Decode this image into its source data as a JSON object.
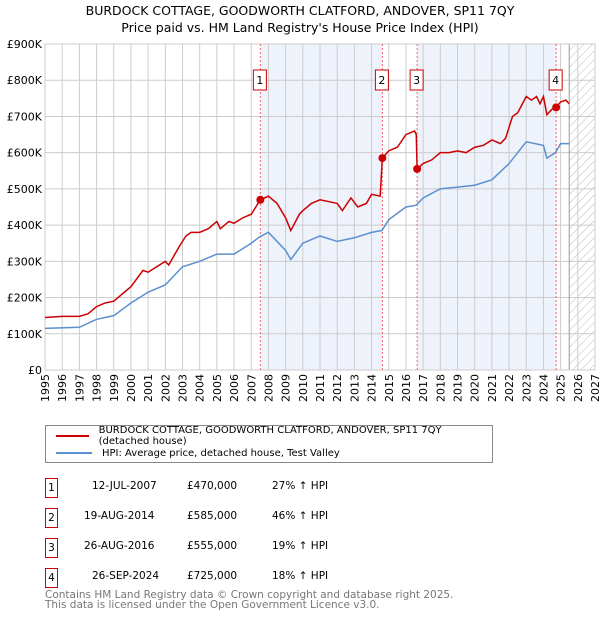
{
  "title": "BURDOCK COTTAGE, GOODWORTH CLATFORD, ANDOVER, SP11 7QY",
  "subtitle": "Price paid vs. HM Land Registry's House Price Index (HPI)",
  "chart_data": {
    "type": "line",
    "ylim": [
      0,
      900000
    ],
    "xlim": [
      1995,
      2027
    ],
    "yticks": [
      "£0",
      "£100K",
      "£200K",
      "£300K",
      "£400K",
      "£500K",
      "£600K",
      "£700K",
      "£800K",
      "£900K"
    ],
    "xticks": [
      "1995",
      "1996",
      "1997",
      "1998",
      "1999",
      "2000",
      "2001",
      "2002",
      "2003",
      "2004",
      "2005",
      "2006",
      "2007",
      "2008",
      "2009",
      "2010",
      "2011",
      "2012",
      "2013",
      "2014",
      "2015",
      "2016",
      "2017",
      "2018",
      "2019",
      "2020",
      "2021",
      "2022",
      "2023",
      "2024",
      "2025",
      "2026",
      "2027"
    ],
    "forecast_start": 2025.5,
    "series": [
      {
        "name": "BURDOCK COTTAGE, GOODWORTH CLATFORD, ANDOVER, SP11 7QY (detached house)",
        "color": "#cc0000",
        "x": [
          1995,
          1996,
          1997,
          1997.5,
          1998,
          1998.5,
          1999,
          2000,
          2000.7,
          2001,
          2001.5,
          2002,
          2002.2,
          2002.8,
          2003.2,
          2003.5,
          2004,
          2004.5,
          2005,
          2005.2,
          2005.7,
          2006,
          2006.5,
          2007,
          2007.53,
          2008,
          2008.5,
          2009,
          2009.3,
          2009.8,
          2010,
          2010.5,
          2011,
          2011.5,
          2012,
          2012.3,
          2012.8,
          2013.2,
          2013.7,
          2014,
          2014.5,
          2014.63,
          2015,
          2015.5,
          2016,
          2016.5,
          2016.6,
          2016.65,
          2017,
          2017.5,
          2018,
          2018.5,
          2019,
          2019.5,
          2020,
          2020.5,
          2021,
          2021.5,
          2021.8,
          2022.2,
          2022.5,
          2023,
          2023.3,
          2023.6,
          2023.8,
          2024,
          2024.2,
          2024.5,
          2024.74,
          2025,
          2025.3,
          2025.5
        ],
        "y": [
          145000,
          148000,
          148000,
          155000,
          175000,
          185000,
          190000,
          230000,
          275000,
          270000,
          285000,
          300000,
          290000,
          340000,
          370000,
          380000,
          380000,
          390000,
          410000,
          390000,
          410000,
          405000,
          420000,
          430000,
          470000,
          480000,
          460000,
          420000,
          385000,
          430000,
          440000,
          460000,
          470000,
          465000,
          460000,
          440000,
          475000,
          450000,
          460000,
          485000,
          480000,
          585000,
          605000,
          615000,
          650000,
          660000,
          650000,
          555000,
          570000,
          580000,
          600000,
          600000,
          605000,
          600000,
          615000,
          620000,
          635000,
          625000,
          640000,
          700000,
          710000,
          755000,
          745000,
          755000,
          735000,
          755000,
          705000,
          720000,
          725000,
          740000,
          745000,
          735000
        ]
      },
      {
        "name": "HPI: Average price, detached house, Test Valley",
        "color": "#5b8fd0",
        "x": [
          1995,
          1997,
          1998,
          1999,
          2000,
          2001,
          2002,
          2003,
          2004,
          2005,
          2006,
          2007,
          2007.5,
          2008,
          2009,
          2009.3,
          2010,
          2011,
          2012,
          2013,
          2014,
          2014.6,
          2015,
          2016,
          2016.6,
          2017,
          2018,
          2019,
          2020,
          2021,
          2022,
          2023,
          2024,
          2024.2,
          2024.7,
          2025,
          2025.5
        ],
        "y": [
          115000,
          118000,
          140000,
          150000,
          185000,
          215000,
          235000,
          285000,
          300000,
          320000,
          320000,
          350000,
          368000,
          380000,
          330000,
          305000,
          350000,
          370000,
          355000,
          365000,
          380000,
          385000,
          415000,
          450000,
          455000,
          475000,
          500000,
          505000,
          510000,
          525000,
          570000,
          630000,
          620000,
          585000,
          600000,
          625000,
          625000
        ]
      }
    ],
    "sales": [
      {
        "n": "1",
        "x": 2007.53,
        "y": 470000,
        "date": "12-JUL-2007",
        "price": "£470,000",
        "hpi": "27% ↑ HPI"
      },
      {
        "n": "2",
        "x": 2014.63,
        "y": 585000,
        "date": "19-AUG-2014",
        "price": "£585,000",
        "hpi": "46% ↑ HPI"
      },
      {
        "n": "3",
        "x": 2016.65,
        "y": 555000,
        "date": "26-AUG-2016",
        "price": "£555,000",
        "hpi": "19% ↑ HPI"
      },
      {
        "n": "4",
        "x": 2024.74,
        "y": 725000,
        "date": "26-SEP-2024",
        "price": "£725,000",
        "hpi": "18% ↑ HPI"
      }
    ]
  },
  "legend": [
    "BURDOCK COTTAGE, GOODWORTH CLATFORD, ANDOVER, SP11 7QY (detached house)",
    "HPI: Average price, detached house, Test Valley"
  ],
  "footer": [
    "Contains HM Land Registry data © Crown copyright and database right 2025.",
    "This data is licensed under the Open Government Licence v3.0."
  ]
}
